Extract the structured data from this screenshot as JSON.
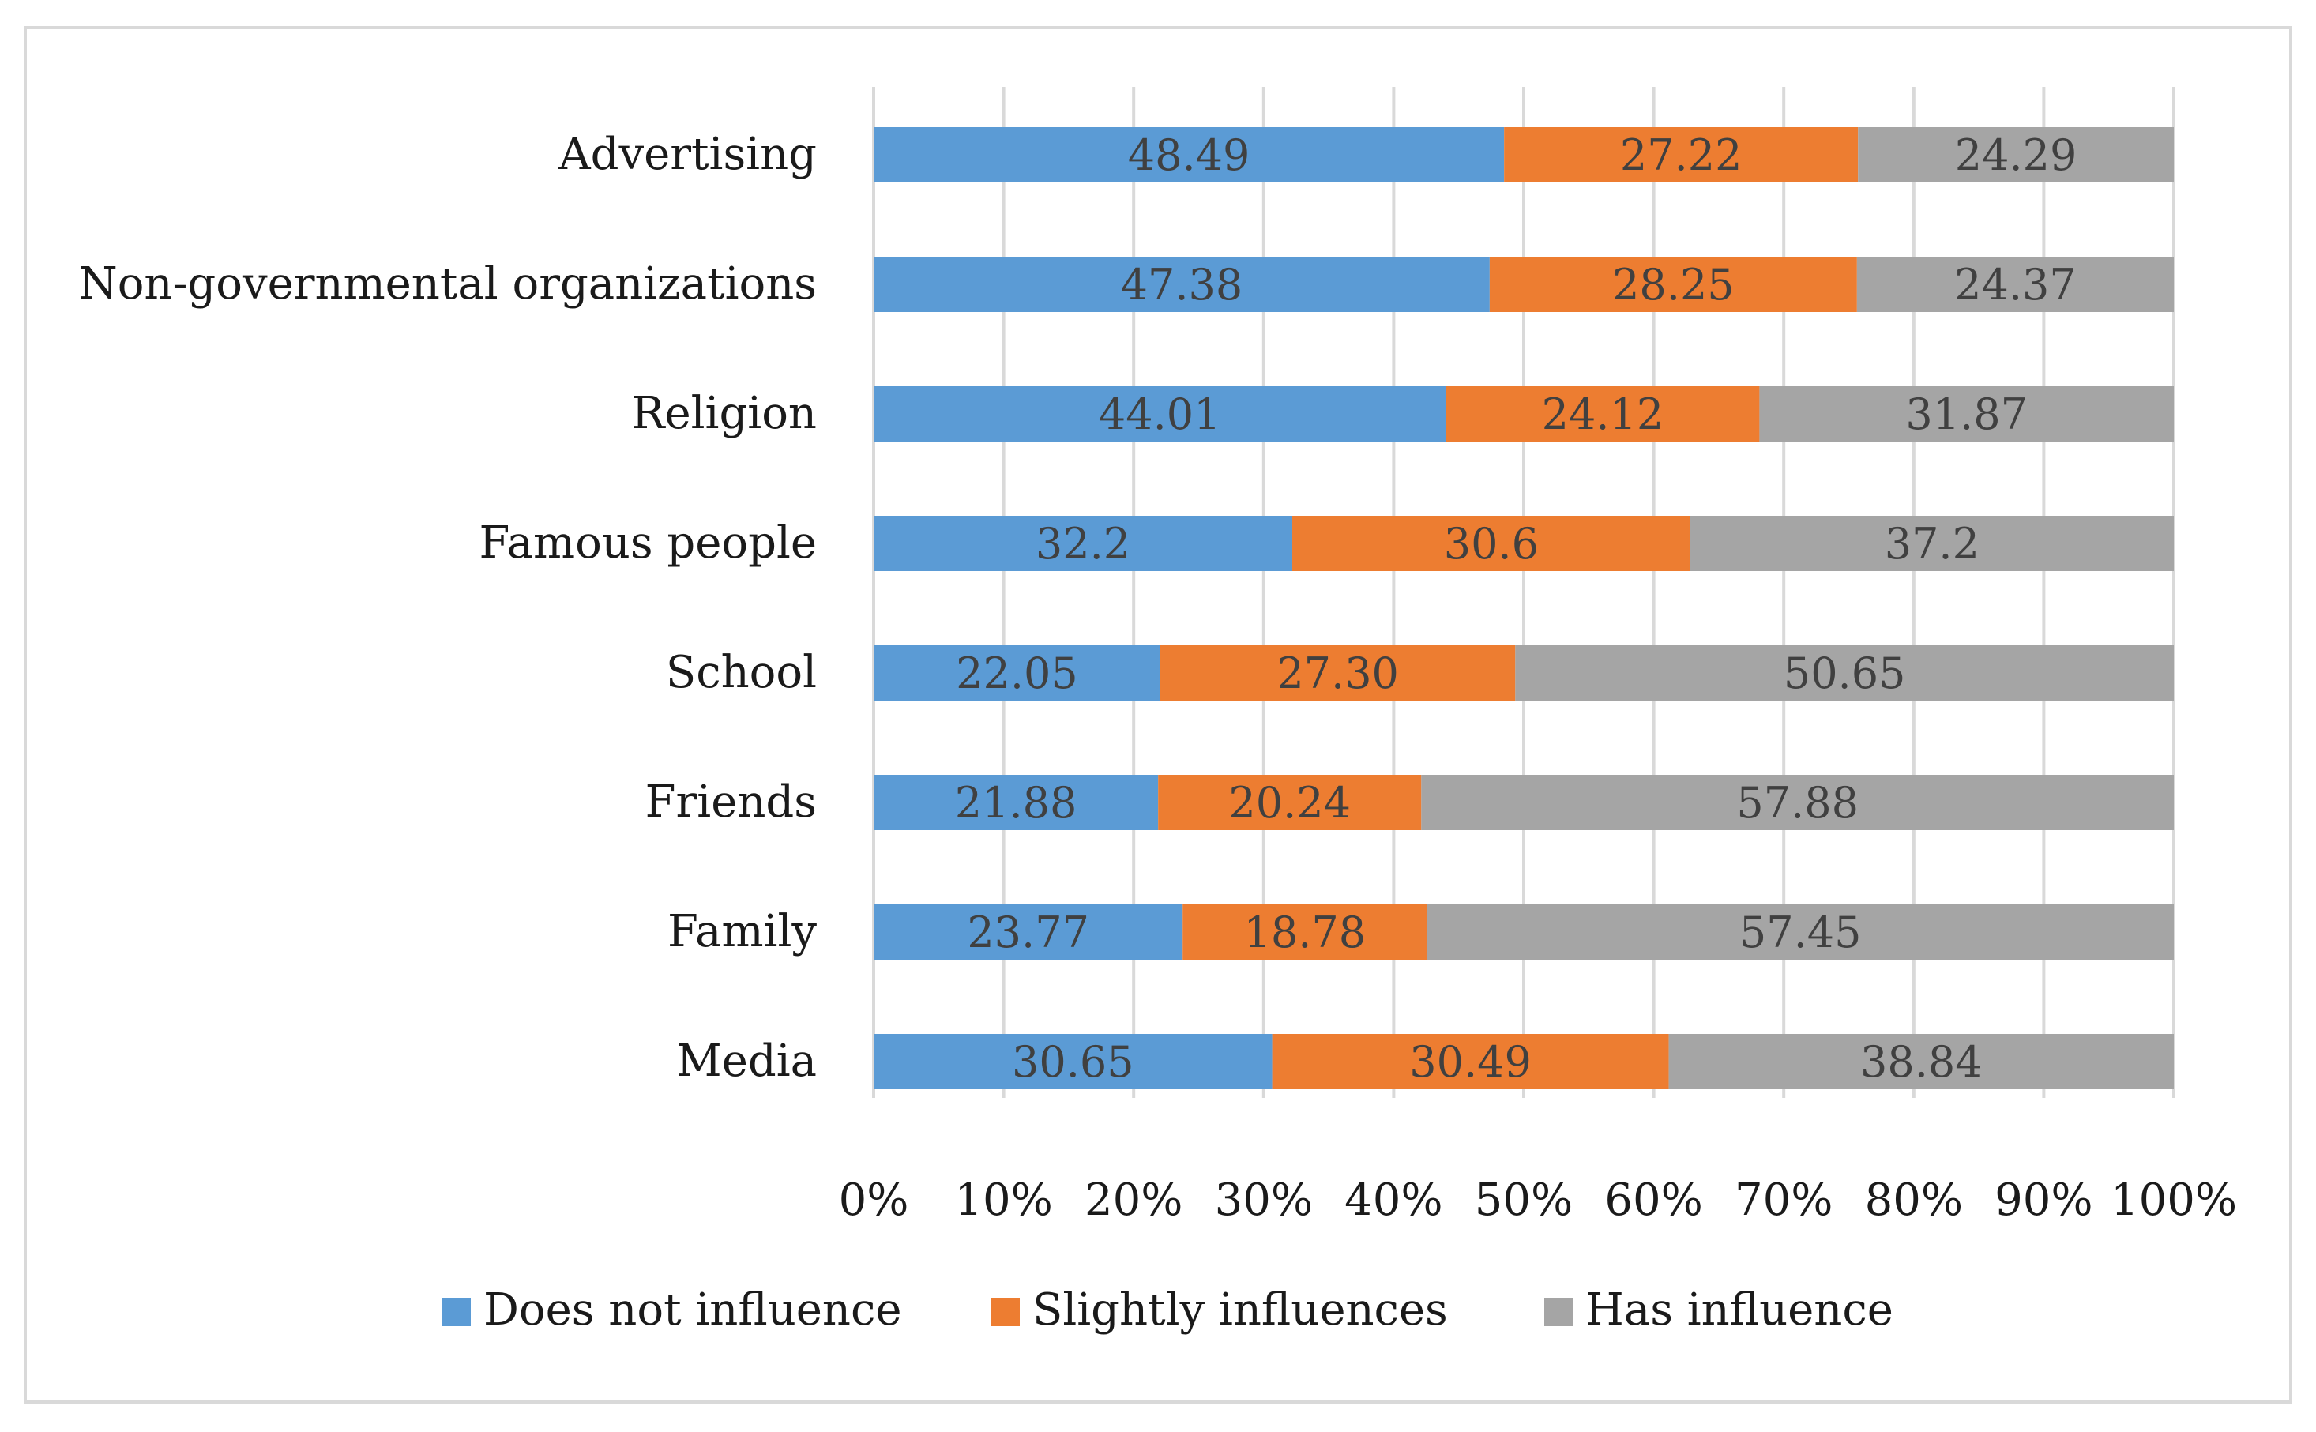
{
  "chart_data": {
    "type": "bar",
    "orientation": "horizontal",
    "stacked": "100%",
    "categories": [
      "Advertising",
      "Non-governmental organizations",
      "Religion",
      "Famous people",
      "School",
      "Friends",
      "Family",
      "Media"
    ],
    "series": [
      {
        "name": "Does not influence",
        "color": "#5B9BD5",
        "values": [
          48.49,
          47.38,
          44.01,
          32.2,
          22.05,
          21.88,
          23.77,
          30.65
        ],
        "labels": [
          "48.49",
          "47.38",
          "44.01",
          "32.2",
          "22.05",
          "21.88",
          "23.77",
          "30.65"
        ]
      },
      {
        "name": "Slightly influences",
        "color": "#ED7D31",
        "values": [
          27.22,
          28.25,
          24.12,
          30.6,
          27.3,
          20.24,
          18.78,
          30.49
        ],
        "labels": [
          "27.22",
          "28.25",
          "24.12",
          "30.6",
          "27.30",
          "20.24",
          "18.78",
          "30.49"
        ]
      },
      {
        "name": "Has influence",
        "color": "#A5A5A5",
        "values": [
          24.29,
          24.37,
          31.87,
          37.2,
          50.65,
          57.88,
          57.45,
          38.84
        ],
        "labels": [
          "24.29",
          "24.37",
          "31.87",
          "37.2",
          "50.65",
          "57.88",
          "57.45",
          "38.84"
        ]
      }
    ],
    "x_ticks": [
      "0%",
      "10%",
      "20%",
      "30%",
      "40%",
      "50%",
      "60%",
      "70%",
      "80%",
      "90%",
      "100%"
    ],
    "xlim": [
      0,
      100
    ],
    "grid": true,
    "legend": "bottom",
    "title": "",
    "xlabel": "",
    "ylabel": ""
  }
}
